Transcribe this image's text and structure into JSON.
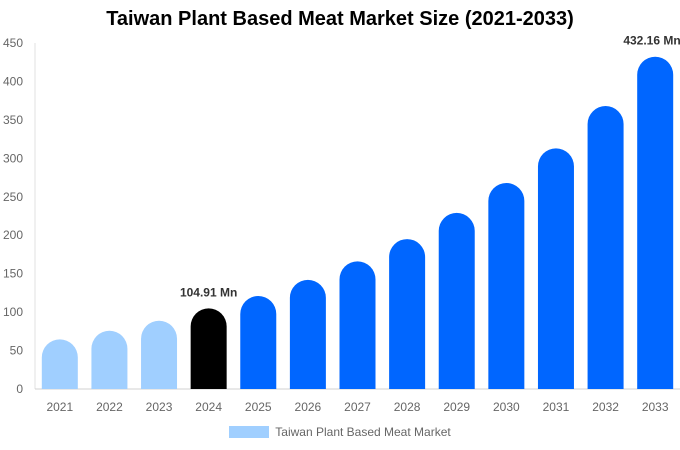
{
  "chart_data": {
    "type": "bar",
    "title": "Taiwan Plant Based Meat Market Size (2021-2033)",
    "categories": [
      "2021",
      "2022",
      "2023",
      "2024",
      "2025",
      "2026",
      "2027",
      "2028",
      "2029",
      "2030",
      "2031",
      "2032",
      "2033"
    ],
    "series": [
      {
        "name": "Taiwan Plant Based Meat Market",
        "values": [
          64.6,
          75.8,
          88.8,
          104.91,
          121,
          142,
          166,
          195,
          229,
          268,
          313,
          368,
          432.16
        ]
      }
    ],
    "bar_colors": [
      "#a0cfff",
      "#a0cfff",
      "#a0cfff",
      "#000000",
      "#0066ff",
      "#0066ff",
      "#0066ff",
      "#0066ff",
      "#0066ff",
      "#0066ff",
      "#0066ff",
      "#0066ff",
      "#0066ff"
    ],
    "data_labels": [
      {
        "index": 3,
        "text": "104.91 Mn"
      },
      {
        "index": 12,
        "text": "432.16 Mn"
      }
    ],
    "yticks": [
      0,
      50,
      100,
      150,
      200,
      250,
      300,
      350,
      400,
      450
    ],
    "ylim": [
      0,
      450
    ],
    "xlabel": "",
    "ylabel": "",
    "grid": false,
    "legend": "bottom"
  }
}
